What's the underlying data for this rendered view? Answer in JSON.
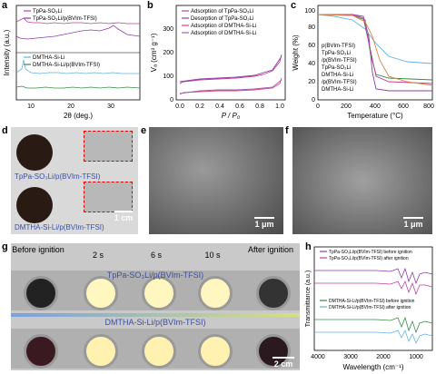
{
  "panels": {
    "a": {
      "label": "a",
      "legend": [
        "TpPa-SO₃Li",
        "TpPa-SO₃Li/p(BVIm-TFSI)",
        "DMTHA-Si-Li",
        "DMTHA-Si-Li/p(BVIm-TFSI)"
      ],
      "ylabel": "Intensity (a.u.)",
      "xlabel": "2θ (deg.)",
      "xticks": [
        "10",
        "20",
        "30"
      ],
      "colors": [
        "#c0409a",
        "#8a3fa8",
        "#63b2e0",
        "#3a8a4a"
      ]
    },
    "b": {
      "label": "b",
      "legend": [
        "Adsorption of TpPa-SO₃Li",
        "Desorption of TpPa-SO₃Li",
        "Adsorption of DMTHA-Si-Li",
        "Adsorption of DMTHA-Si-Li"
      ],
      "ylabel": "Vₐ (cm³ g⁻¹)",
      "xlabel": "P / P₀",
      "yticks": [
        "0",
        "100",
        "200",
        "300"
      ],
      "xticks": [
        "0.0",
        "0.2",
        "0.4",
        "0.6",
        "0.8",
        "1.0"
      ]
    },
    "c": {
      "label": "c",
      "legend": [
        "p(BVIm-TFSI)",
        "TpPa-SO₃Li",
        "/p(BVIm-TFSI)",
        "TpPa-SO₃Li",
        "DMTHA-Si-Li",
        "/p(BVIm-TFSI)",
        "DMTHA-Si-Li"
      ],
      "ylabel": "Weight (%)",
      "xlabel": "Temperature (°C)",
      "yticks": [
        "0",
        "20",
        "40",
        "60",
        "80",
        "100"
      ],
      "xticks": [
        "0",
        "200",
        "400",
        "600",
        "800"
      ]
    },
    "d": {
      "label": "d",
      "top": "TpPa-SO₃Li/p(BVIm-TFSI)",
      "bottom": "DMTHA-Si-Li/p(BVIm-TFSI)",
      "scale": "1 cm"
    },
    "e": {
      "label": "e",
      "scale": "1 μm"
    },
    "f": {
      "label": "f",
      "scale": "1 μm"
    },
    "g": {
      "label": "g",
      "times": [
        "Before ignition",
        "2 s",
        "6 s",
        "10 s",
        "After ignition"
      ],
      "row1": "TpPa-SO₃Li/p(BVIm-TFSI)",
      "row2": "DMTHA-Si-Li/p(BVIm-TFSI)",
      "scale": "2 cm"
    },
    "h": {
      "label": "h",
      "legend": [
        "TpPa-SO₃Li/p(BVIm-TFSI) before ignition",
        "TpPa-SO₃Li/p(BVIm-TFSI) after ignition",
        "DMTHA-Si-Li/p(BVIm-TFSI) before ignition",
        "DMTHA-Si-Li/p(BVIm-TFSI) after ignition"
      ],
      "ylabel": "Transmittance (a.u.)",
      "xlabel": "Wavelength (cm⁻¹)",
      "xticks": [
        "4000",
        "3000",
        "2000",
        "1000"
      ]
    }
  }
}
